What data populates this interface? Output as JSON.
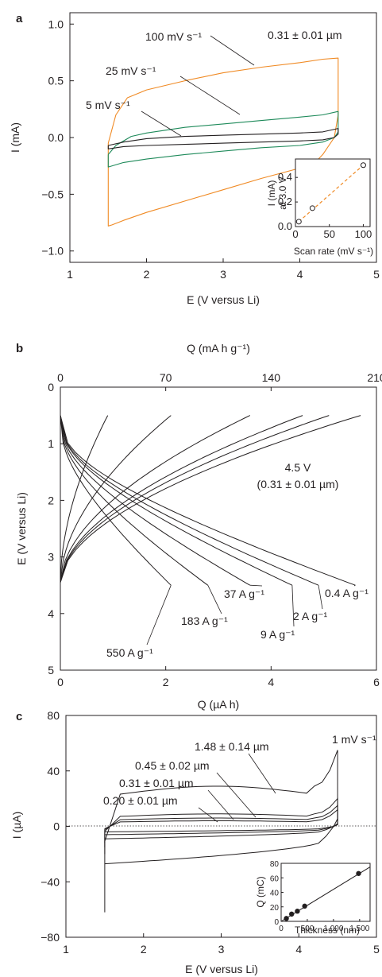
{
  "panels": [
    {
      "id": "a",
      "label": "a",
      "xlabel": "E (V versus Li)",
      "ylabel": "I (mA)",
      "xlim": [
        1,
        5
      ],
      "ylim": [
        -1.1,
        1.1
      ],
      "xticks": [
        "1",
        "2",
        "3",
        "4",
        "5"
      ],
      "yticks": [
        "1.0",
        "0.5",
        "0.0",
        "−0.5",
        "−1.0"
      ],
      "annotations": [
        "100 mV s⁻¹",
        "25 mV s⁻¹",
        "5 mV s⁻¹",
        "0.31 ± 0.01 µm"
      ],
      "colors": {
        "100": "#f08a24",
        "25": "#1e8a5a",
        "5": "#231f20"
      },
      "inset": {
        "xlabel": "Scan rate (mV s⁻¹)",
        "ylabel_line1": "I (mA)",
        "ylabel_line2": "at 3.0 V",
        "xticks": [
          "0",
          "50",
          "100"
        ],
        "yticks": [
          "0.0",
          "0.2",
          "0.4"
        ]
      }
    },
    {
      "id": "b",
      "label": "b",
      "xlabel": "Q (µA h)",
      "x2label": "Q (mA h g⁻¹)",
      "ylabel": "E (V versus Li)",
      "xlim": [
        0,
        6
      ],
      "x2lim": [
        0,
        210
      ],
      "ylim": [
        0,
        5
      ],
      "xticks": [
        "0",
        "2",
        "4",
        "6"
      ],
      "x2ticks": [
        "0",
        "70",
        "140",
        "210"
      ],
      "yticks": [
        "0",
        "1",
        "2",
        "3",
        "4",
        "5"
      ],
      "annotations": [
        "4.5 V",
        "(0.31 ± 0.01 µm)"
      ],
      "rates": [
        "550 A g⁻¹",
        "183 A g⁻¹",
        "37 A g⁻¹",
        "9 A g⁻¹",
        "2 A g⁻¹",
        "0.4 A g⁻¹"
      ]
    },
    {
      "id": "c",
      "label": "c",
      "xlabel": "E (V versus Li)",
      "ylabel": "I (µA)",
      "xlim": [
        1,
        5
      ],
      "ylim": [
        -80,
        80
      ],
      "xticks": [
        "1",
        "2",
        "3",
        "4",
        "5"
      ],
      "yticks": [
        "80",
        "40",
        "0",
        "−40",
        "−80"
      ],
      "annotations": [
        "1 mV s⁻¹",
        "1.48 ± 0.14 µm",
        "0.45 ± 0.02 µm",
        "0.31 ± 0.01 µm",
        "0.20 ± 0.01 µm"
      ],
      "inset": {
        "xlabel": "Thickness (nm)",
        "ylabel": "Q (mC)",
        "xticks": [
          "0",
          "500",
          "1,000",
          "1,500"
        ],
        "yticks": [
          "0",
          "20",
          "40",
          "60",
          "80"
        ]
      }
    }
  ],
  "chart_data": [
    {
      "type": "line",
      "panel": "a",
      "xlabel": "E (V versus Li)",
      "ylabel": "I (mA)",
      "xlim": [
        1,
        5
      ],
      "ylim": [
        -1.1,
        1.1
      ],
      "series": [
        {
          "name": "100 mV s⁻¹",
          "color": "#f08a24",
          "x": [
            1.5,
            1.6,
            1.75,
            2.0,
            2.5,
            3.0,
            3.5,
            4.0,
            4.3,
            4.5,
            4.5,
            4.45,
            4.3,
            4.2,
            4.0,
            3.5,
            3.0,
            2.5,
            2.0,
            1.7,
            1.55,
            1.5,
            1.5
          ],
          "y": [
            -0.05,
            0.2,
            0.35,
            0.42,
            0.5,
            0.57,
            0.62,
            0.66,
            0.69,
            0.7,
            0.2,
            0.0,
            -0.15,
            -0.22,
            -0.27,
            -0.36,
            -0.46,
            -0.56,
            -0.66,
            -0.73,
            -0.77,
            -0.78,
            -0.05
          ]
        },
        {
          "name": "25 mV s⁻¹",
          "color": "#1e8a5a",
          "x": [
            1.5,
            1.6,
            1.8,
            2.0,
            2.5,
            3.0,
            3.5,
            4.0,
            4.3,
            4.5,
            4.5,
            4.45,
            4.3,
            4.0,
            3.5,
            3.0,
            2.5,
            2.0,
            1.7,
            1.5,
            1.5
          ],
          "y": [
            -0.15,
            -0.07,
            0.01,
            0.04,
            0.09,
            0.12,
            0.15,
            0.18,
            0.2,
            0.23,
            0.05,
            0.0,
            -0.04,
            -0.07,
            -0.09,
            -0.12,
            -0.15,
            -0.19,
            -0.22,
            -0.26,
            -0.15
          ]
        },
        {
          "name": "5 mV s⁻¹",
          "color": "#231f20",
          "x": [
            1.5,
            1.7,
            2.0,
            2.5,
            3.0,
            3.5,
            4.0,
            4.3,
            4.5,
            4.5,
            4.45,
            4.3,
            4.0,
            3.5,
            3.0,
            2.5,
            2.0,
            1.7,
            1.5,
            1.5
          ],
          "y": [
            -0.07,
            -0.04,
            -0.01,
            0.01,
            0.02,
            0.03,
            0.04,
            0.05,
            0.08,
            0.03,
            0.0,
            -0.02,
            -0.03,
            -0.04,
            -0.05,
            -0.06,
            -0.07,
            -0.08,
            -0.1,
            -0.07
          ]
        }
      ],
      "inset": {
        "type": "scatter",
        "xlabel": "Scan rate (mV s⁻¹)",
        "ylabel": "I (mA) at 3.0 V",
        "xlim": [
          0,
          110
        ],
        "ylim": [
          0,
          0.55
        ],
        "x": [
          5,
          25,
          100
        ],
        "y": [
          0.04,
          0.15,
          0.5
        ]
      }
    },
    {
      "type": "line",
      "panel": "b",
      "xlabel": "Q (µA h)",
      "x2label": "Q (mA h g⁻¹)",
      "ylabel": "E (V versus Li)",
      "xlim": [
        0,
        6
      ],
      "x2lim": [
        0,
        210
      ],
      "ylim": [
        0,
        5
      ],
      "series": [
        {
          "name": "550 A g⁻¹",
          "qmax": 0.9,
          "cdisch": 2.1,
          "endV": 1.5
        },
        {
          "name": "183 A g⁻¹",
          "qmax": 2.1,
          "cdisch": 2.8,
          "endV": 1.5
        },
        {
          "name": "37 A g⁻¹",
          "qmax": 3.6,
          "cdisch": 3.6,
          "endV": 1.5
        },
        {
          "name": "9 A g⁻¹",
          "qmax": 4.6,
          "cdisch": 4.4,
          "endV": 1.5
        },
        {
          "name": "2 A g⁻¹",
          "qmax": 5.1,
          "cdisch": 4.9,
          "endV": 1.5
        },
        {
          "name": "0.4 A g⁻¹",
          "qmax": 5.7,
          "cdisch": 5.6,
          "endV": 1.5
        }
      ]
    },
    {
      "type": "line",
      "panel": "c",
      "xlabel": "E (V versus Li)",
      "ylabel": "I (µA)",
      "xlim": [
        1,
        5
      ],
      "ylim": [
        -80,
        80
      ],
      "series": [
        {
          "name": "1.48 ± 0.14 µm",
          "top": 29,
          "bot": -27,
          "endTop": 55,
          "endBot": -62
        },
        {
          "name": "0.45 ± 0.02 µm",
          "top": 9,
          "bot": -9,
          "endTop": 20,
          "endBot": -20
        },
        {
          "name": "0.31 ± 0.01 µm",
          "top": 6,
          "bot": -6,
          "endTop": 15,
          "endBot": -15
        },
        {
          "name": "0.20 ± 0.01 µm",
          "top": 4,
          "bot": -4,
          "endTop": 12,
          "endBot": -12
        }
      ],
      "inset": {
        "type": "scatter",
        "xlabel": "Thickness (nm)",
        "ylabel": "Q (mC)",
        "xlim": [
          0,
          1700
        ],
        "ylim": [
          0,
          80
        ],
        "x": [
          100,
          200,
          310,
          450,
          1480
        ],
        "y": [
          4,
          10,
          14,
          21,
          66
        ]
      }
    }
  ]
}
